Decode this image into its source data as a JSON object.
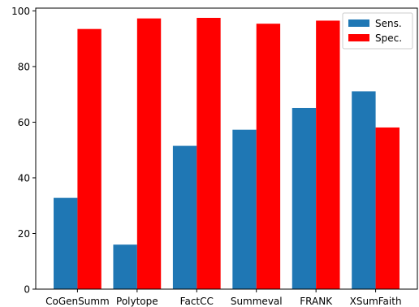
{
  "chart_data": {
    "type": "bar",
    "categories": [
      "CoGenSumm",
      "Polytope",
      "FactCC",
      "Summeval",
      "FRANK",
      "XSumFaith"
    ],
    "series": [
      {
        "name": "Sens.",
        "color": "#1f77b4",
        "values": [
          32.8,
          16.0,
          51.5,
          57.3,
          65.1,
          71.1
        ]
      },
      {
        "name": "Spec.",
        "color": "#ff0000",
        "values": [
          93.5,
          97.3,
          97.5,
          95.4,
          96.5,
          58.1
        ]
      }
    ],
    "title": "",
    "xlabel": "",
    "ylabel": "",
    "ylim": [
      0,
      101
    ],
    "yticks": [
      0,
      20,
      40,
      60,
      80,
      100
    ],
    "grid": false,
    "legend_position": "top-right"
  }
}
